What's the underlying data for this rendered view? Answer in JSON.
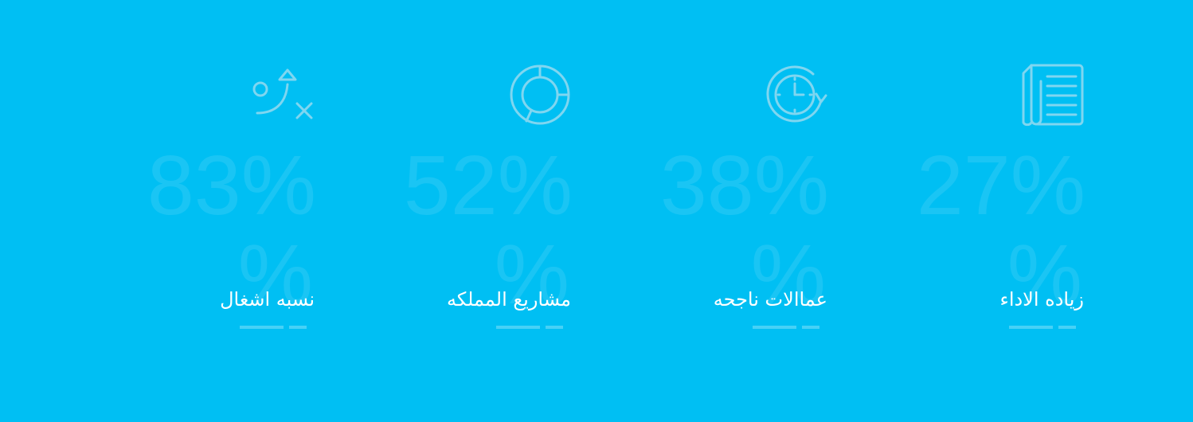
{
  "colors": {
    "background": "#00bff3",
    "icon_stroke": "#7fd6f0",
    "label_text": "#ffffff"
  },
  "stats": [
    {
      "icon": "strategy-icon",
      "value": "83%",
      "suffix": "%",
      "label": "نسبه اشغال"
    },
    {
      "icon": "donut-chart-icon",
      "value": "52%",
      "suffix": "%",
      "label": "مشاريع المملكه"
    },
    {
      "icon": "clock-refresh-icon",
      "value": "38%",
      "suffix": "%",
      "label": "عماالات ناجحه"
    },
    {
      "icon": "document-icon",
      "value": "27%",
      "suffix": "%",
      "label": "زياده الاداء"
    }
  ]
}
